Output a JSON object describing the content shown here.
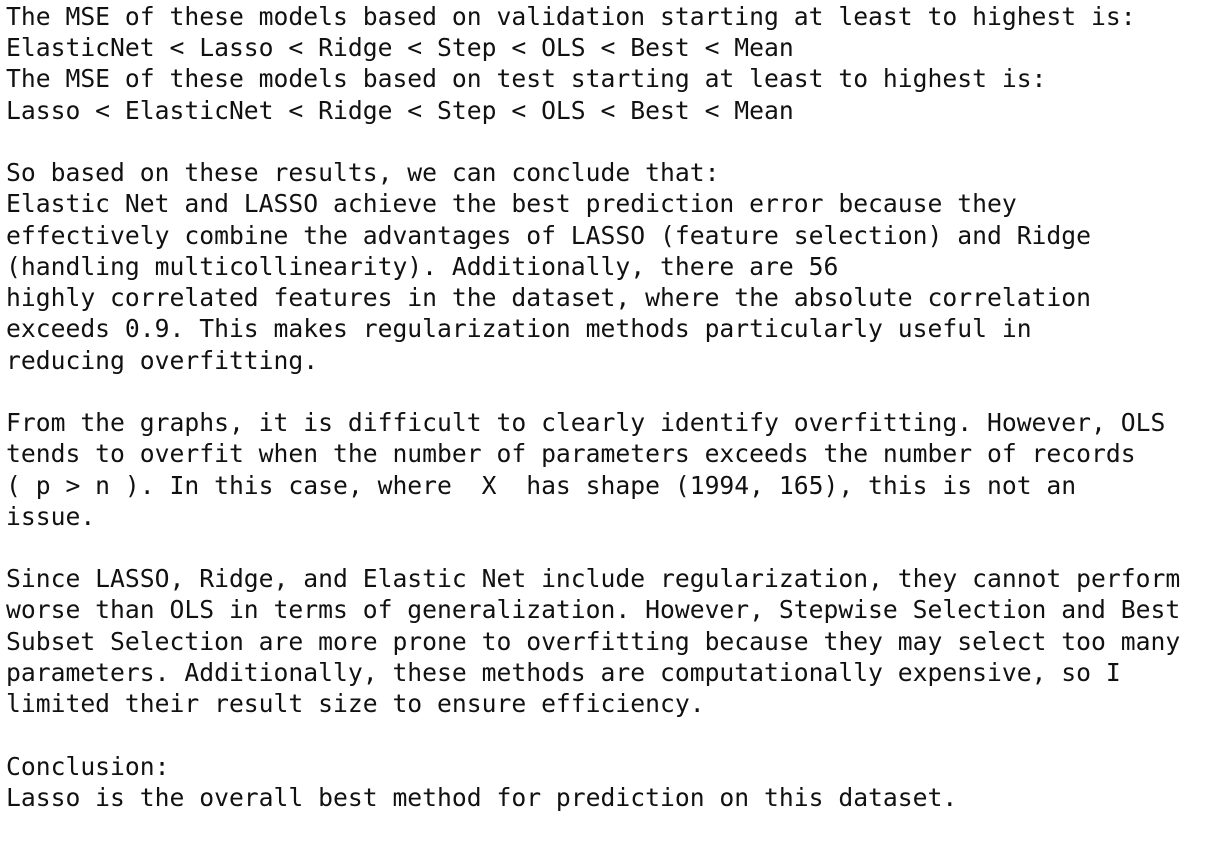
{
  "output": {
    "paragraphs": [
      {
        "lines": [
          "The MSE of these models based on validation starting at least to highest is:",
          "ElasticNet < Lasso < Ridge < Step < OLS < Best < Mean",
          "The MSE of these models based on test starting at least to highest is:",
          "Lasso < ElasticNet < Ridge < Step < OLS < Best < Mean"
        ]
      },
      {
        "lines": [
          "So based on these results, we can conclude that:",
          "Elastic Net and LASSO achieve the best prediction error because they",
          "effectively combine the advantages of LASSO (feature selection) and Ridge",
          "(handling multicollinearity). Additionally, there are 56",
          "highly correlated features in the dataset, where the absolute correlation",
          "exceeds 0.9. This makes regularization methods particularly useful in",
          "reducing overfitting."
        ]
      },
      {
        "lines": [
          "From the graphs, it is difficult to clearly identify overfitting. However, OLS",
          "tends to overfit when the number of parameters exceeds the number of records",
          "( p > n ). In this case, where  X  has shape (1994, 165), this is not an",
          "issue."
        ]
      },
      {
        "lines": [
          "Since LASSO, Ridge, and Elastic Net include regularization, they cannot perform",
          "worse than OLS in terms of generalization. However, Stepwise Selection and Best",
          "Subset Selection are more prone to overfitting because they may select too many",
          "parameters. Additionally, these methods are computationally expensive, so I",
          "limited their result size to ensure efficiency."
        ]
      },
      {
        "lines": [
          "Conclusion:",
          "Lasso is the overall best method for prediction on this dataset."
        ]
      }
    ]
  }
}
